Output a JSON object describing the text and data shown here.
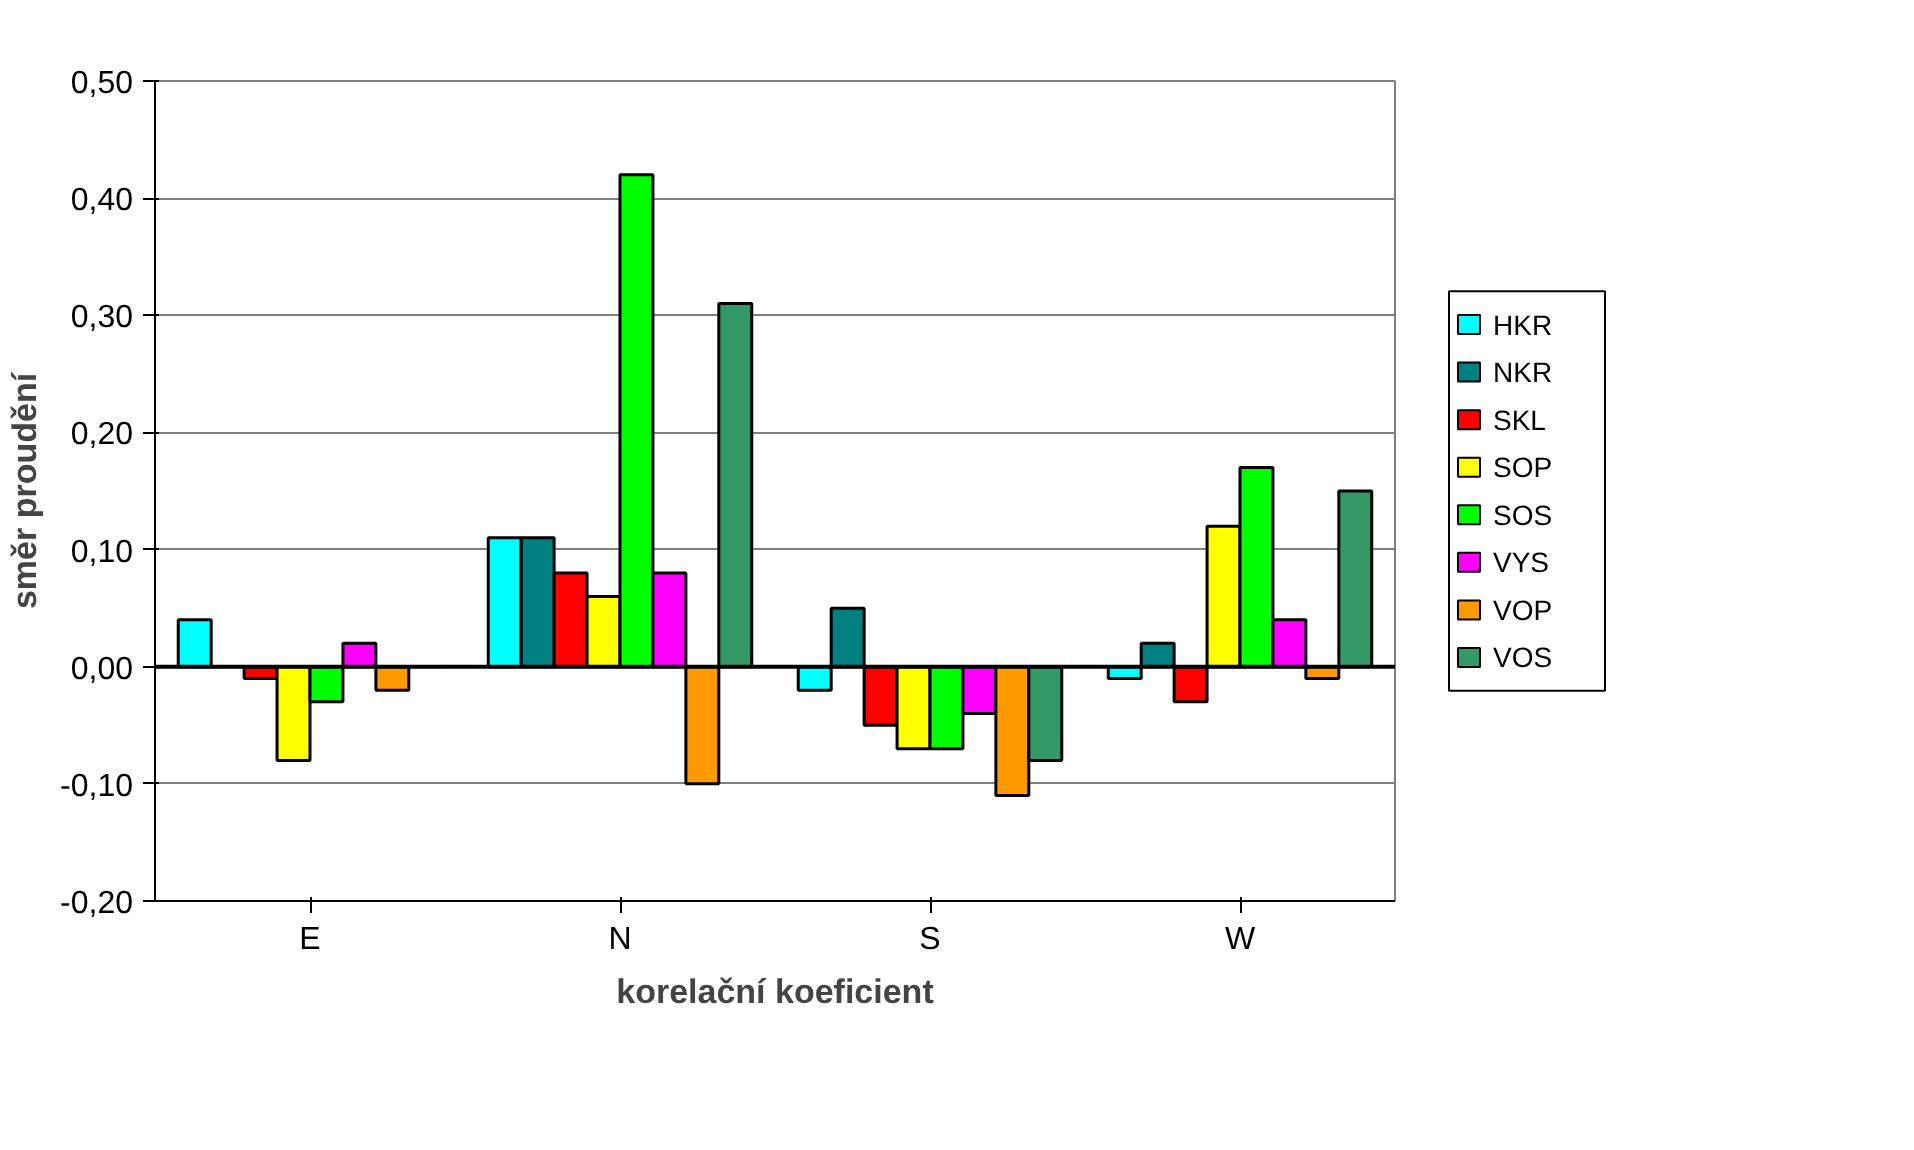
{
  "chart_data": {
    "type": "bar",
    "xlabel": "korelační koeficient",
    "ylabel": "směr proudění",
    "categories": [
      "E",
      "N",
      "S",
      "W"
    ],
    "series": [
      {
        "name": "HKR",
        "color": "#00ffff",
        "values": [
          0.04,
          0.11,
          -0.02,
          -0.01
        ]
      },
      {
        "name": "NKR",
        "color": "#008080",
        "values": [
          0.0,
          0.11,
          0.05,
          0.02
        ]
      },
      {
        "name": "SKL",
        "color": "#ff0000",
        "values": [
          -0.01,
          0.08,
          -0.05,
          -0.03
        ]
      },
      {
        "name": "SOP",
        "color": "#ffff00",
        "values": [
          -0.08,
          0.06,
          -0.07,
          0.12
        ]
      },
      {
        "name": "SOS",
        "color": "#00ff00",
        "values": [
          -0.03,
          0.42,
          -0.07,
          0.17
        ]
      },
      {
        "name": "VYS",
        "color": "#ff00ff",
        "values": [
          0.02,
          0.08,
          -0.04,
          0.04
        ]
      },
      {
        "name": "VOP",
        "color": "#ff9900",
        "values": [
          -0.02,
          -0.1,
          -0.11,
          -0.01
        ]
      },
      {
        "name": "VOS",
        "color": "#339966",
        "values": [
          0.0,
          0.31,
          -0.08,
          0.15
        ]
      }
    ],
    "ylim": [
      -0.2,
      0.5
    ],
    "yticks": [
      {
        "value": -0.2,
        "label": "-0,20"
      },
      {
        "value": -0.1,
        "label": "-0,10"
      },
      {
        "value": 0,
        "label": "0,00"
      },
      {
        "value": 0.1,
        "label": "0,10"
      },
      {
        "value": 0.2,
        "label": "0,20"
      },
      {
        "value": 0.3,
        "label": "0,30"
      },
      {
        "value": 0.4,
        "label": "0,40"
      },
      {
        "value": 0.5,
        "label": "0,50"
      }
    ],
    "grid": "y",
    "legend": "right"
  }
}
